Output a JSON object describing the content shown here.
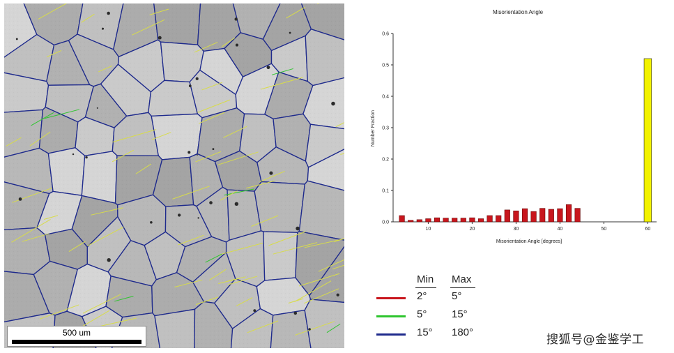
{
  "micrograph": {
    "scale_label": "500 um",
    "boundary_colors": {
      "low": "#c8161d",
      "mid": "#2ec52e",
      "high": "#1e2a8c"
    },
    "twin_color": "#d8dc4a"
  },
  "legend": {
    "min_header": "Min",
    "max_header": "Max",
    "rows": [
      {
        "min": "2°",
        "max": "5°",
        "color": "#c8161d"
      },
      {
        "min": "5°",
        "max": "15°",
        "color": "#2ec52e"
      },
      {
        "min": "15°",
        "max": "180°",
        "color": "#1e2a8c"
      }
    ]
  },
  "watermark": "搜狐号@金鉴学工",
  "chart_data": {
    "type": "bar",
    "title": "Misorientation Angle",
    "xlabel": "Misorientation Angle [degrees]",
    "ylabel": "Number Fraction",
    "xlim": [
      2,
      62
    ],
    "ylim": [
      0,
      0.6
    ],
    "xticks": [
      10,
      20,
      30,
      40,
      50,
      60
    ],
    "yticks": [
      0.0,
      0.1,
      0.2,
      0.3,
      0.4,
      0.5,
      0.6
    ],
    "grid": false,
    "bar_color": "#c8161d",
    "highlight_color": "#f2f200",
    "bars": [
      {
        "x": 4,
        "value": 0.02
      },
      {
        "x": 6,
        "value": 0.005
      },
      {
        "x": 8,
        "value": 0.007
      },
      {
        "x": 10,
        "value": 0.01
      },
      {
        "x": 12,
        "value": 0.013
      },
      {
        "x": 14,
        "value": 0.012
      },
      {
        "x": 16,
        "value": 0.012
      },
      {
        "x": 18,
        "value": 0.012
      },
      {
        "x": 20,
        "value": 0.013
      },
      {
        "x": 22,
        "value": 0.01
      },
      {
        "x": 24,
        "value": 0.02
      },
      {
        "x": 26,
        "value": 0.02
      },
      {
        "x": 28,
        "value": 0.038
      },
      {
        "x": 30,
        "value": 0.035
      },
      {
        "x": 32,
        "value": 0.042
      },
      {
        "x": 34,
        "value": 0.033
      },
      {
        "x": 36,
        "value": 0.043
      },
      {
        "x": 38,
        "value": 0.04
      },
      {
        "x": 40,
        "value": 0.042
      },
      {
        "x": 42,
        "value": 0.055
      },
      {
        "x": 44,
        "value": 0.043
      },
      {
        "x": 60,
        "value": 0.52,
        "highlight": true
      }
    ]
  }
}
